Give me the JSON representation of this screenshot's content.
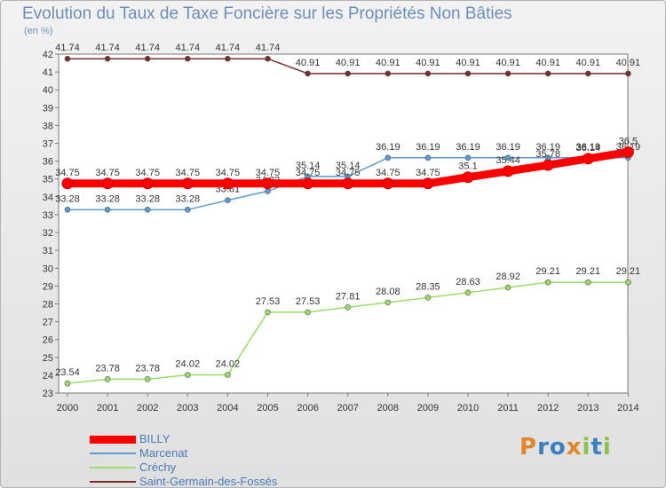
{
  "chart_data": {
    "type": "line",
    "title": "Evolution du Taux de Taxe Foncière sur les Propriétés Non Bâties",
    "ylabel": "(en %)",
    "xlabel": "",
    "ylim": [
      23,
      42
    ],
    "yticks": [
      23,
      24,
      25,
      26,
      27,
      28,
      29,
      30,
      31,
      32,
      33,
      34,
      35,
      36,
      37,
      38,
      39,
      40,
      41,
      42
    ],
    "x": [
      "2000",
      "2001",
      "2002",
      "2003",
      "2004",
      "2005",
      "2006",
      "2007",
      "2008",
      "2009",
      "2010",
      "2011",
      "2012",
      "2013",
      "2014"
    ],
    "grid": false,
    "legend_position": "bottom-left",
    "series": [
      {
        "name": "BILLY",
        "color": "#ff0000",
        "values": [
          34.75,
          34.75,
          34.75,
          34.75,
          34.75,
          34.75,
          34.75,
          34.75,
          34.75,
          34.75,
          35.1,
          35.44,
          35.78,
          36.14,
          36.5
        ],
        "labels": [
          "34.75",
          "34.75",
          "34.75",
          "34.75",
          "34.75",
          "34.75",
          "34.75",
          "34.75",
          "34.75",
          "34.75",
          "35.1",
          "35.44",
          "35.78",
          "36.14",
          "36.5"
        ]
      },
      {
        "name": "Marcenat",
        "color": "#5b9bd5",
        "values": [
          33.28,
          33.28,
          33.28,
          33.28,
          33.81,
          34.32,
          35.14,
          35.14,
          36.19,
          36.19,
          36.19,
          36.19,
          36.19,
          36.19,
          36.19
        ],
        "labels": [
          "33.28",
          "33.28",
          "33.28",
          "33.28",
          "33.81",
          "34.32",
          "35.14",
          "35.14",
          "36.19",
          "36.19",
          "36.19",
          "36.19",
          "36.19",
          "36.19",
          "36.19"
        ]
      },
      {
        "name": "Créchy",
        "color": "#99dd66",
        "values": [
          23.54,
          23.78,
          23.78,
          24.02,
          24.02,
          27.53,
          27.53,
          27.81,
          28.08,
          28.35,
          28.63,
          28.92,
          29.21,
          29.21,
          29.21
        ],
        "labels": [
          "23.54",
          "23.78",
          "23.78",
          "24.02",
          "24.02",
          "27.53",
          "27.53",
          "27.81",
          "28.08",
          "28.35",
          "28.63",
          "28.92",
          "29.21",
          "29.21",
          "29.21"
        ]
      },
      {
        "name": "Saint-Germain-des-Fossés",
        "color": "#7b2c2c",
        "values": [
          41.74,
          41.74,
          41.74,
          41.74,
          41.74,
          41.74,
          40.91,
          40.91,
          40.91,
          40.91,
          40.91,
          40.91,
          40.91,
          40.91,
          40.91
        ],
        "labels": [
          "41.74",
          "41.74",
          "41.74",
          "41.74",
          "41.74",
          "41.74",
          "40.91",
          "40.91",
          "40.91",
          "40.91",
          "40.91",
          "40.91",
          "40.91",
          "40.91",
          "40.91"
        ]
      }
    ]
  },
  "logo": {
    "text": "Proxiti"
  }
}
